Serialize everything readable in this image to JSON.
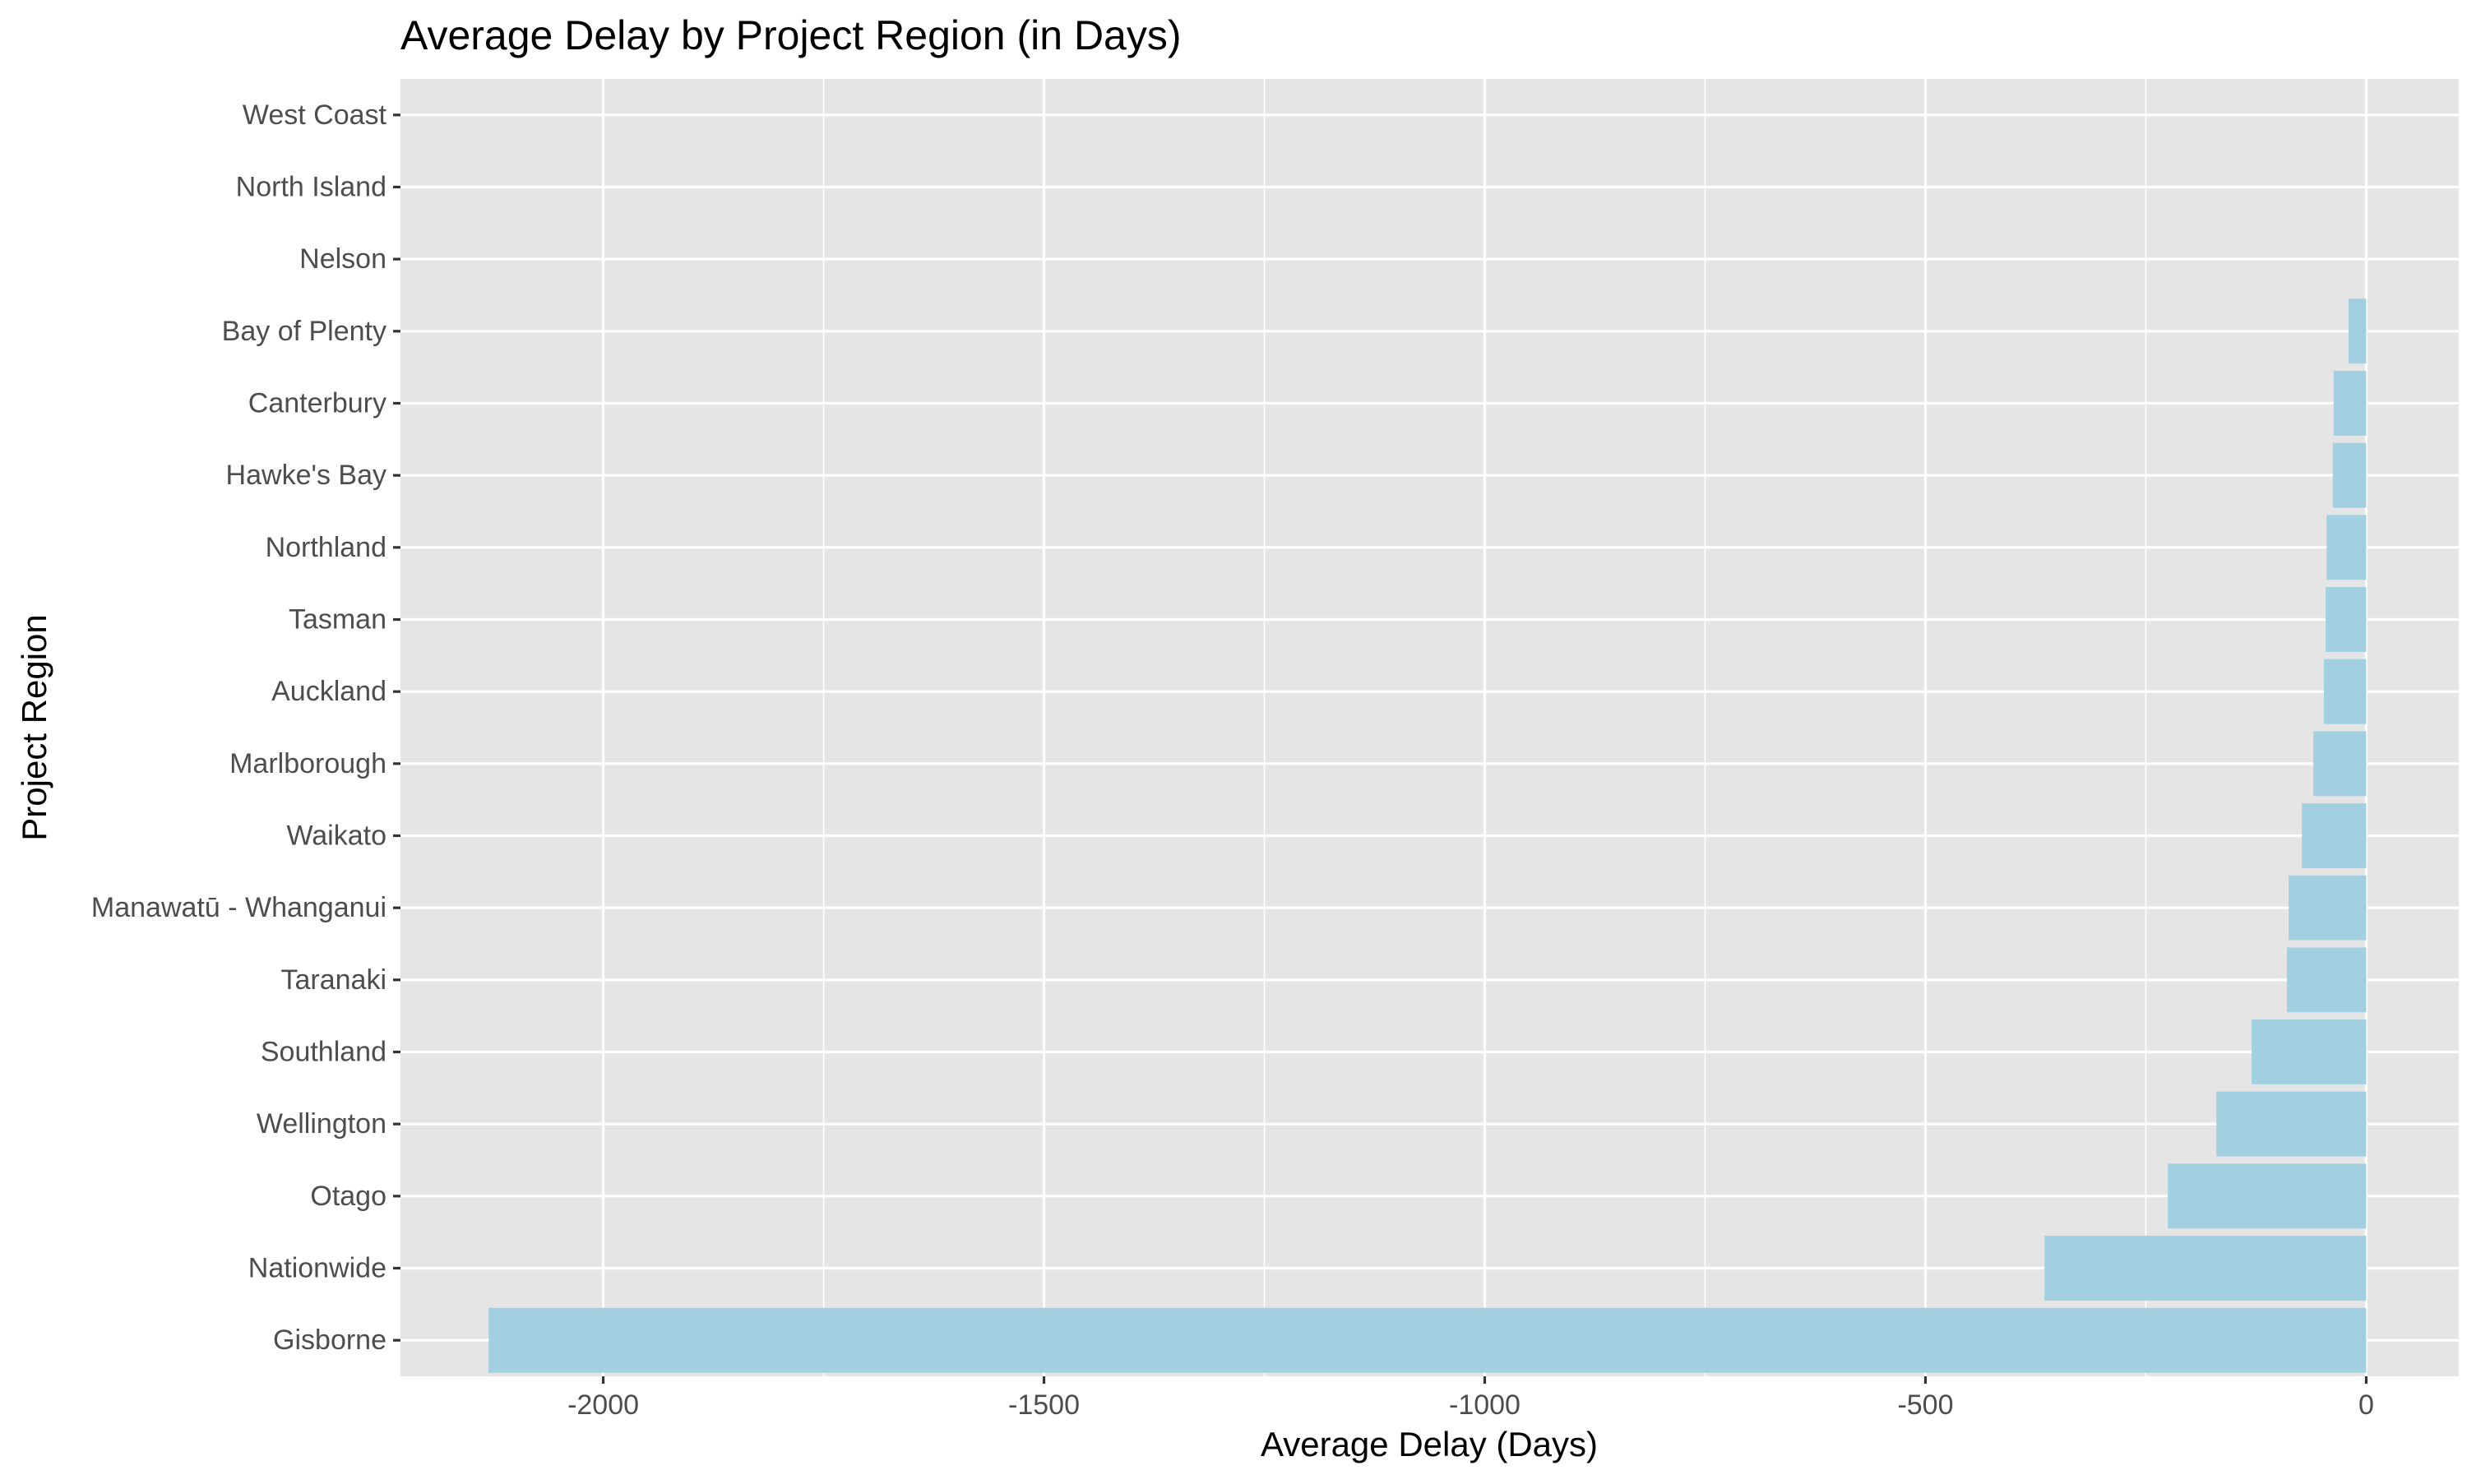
{
  "chart_data": {
    "type": "bar",
    "orientation": "horizontal",
    "title": "Average Delay by Project Region (in Days)",
    "xlabel": "Average Delay (Days)",
    "ylabel": "Project Region",
    "categories": [
      "Gisborne",
      "Nationwide",
      "Otago",
      "Wellington",
      "Southland",
      "Taranaki",
      "Manawatū - Whanganui",
      "Waikato",
      "Marlborough",
      "Auckland",
      "Tasman",
      "Northland",
      "Hawke's Bay",
      "Canterbury",
      "Bay of Plenty",
      "Nelson",
      "North Island",
      "West Coast"
    ],
    "values": [
      -2130,
      -365,
      -225,
      -170,
      -130,
      -90,
      -88,
      -73,
      -60,
      -48,
      -46,
      -45,
      -38,
      -37,
      -20,
      0,
      0,
      0
    ],
    "xlim": [
      -2230,
      105
    ],
    "xticks": [
      -2000,
      -1500,
      -1000,
      -500,
      0
    ],
    "xtick_labels": [
      "-2000",
      "-1500",
      "-1000",
      "-500",
      "0"
    ],
    "grid": true,
    "colors": {
      "bar": "#a3d0e1",
      "panel_background": "#e5e5e5",
      "grid": "#ffffff",
      "tick_text": "#4d4d4d",
      "tick_mark": "#333333"
    }
  }
}
